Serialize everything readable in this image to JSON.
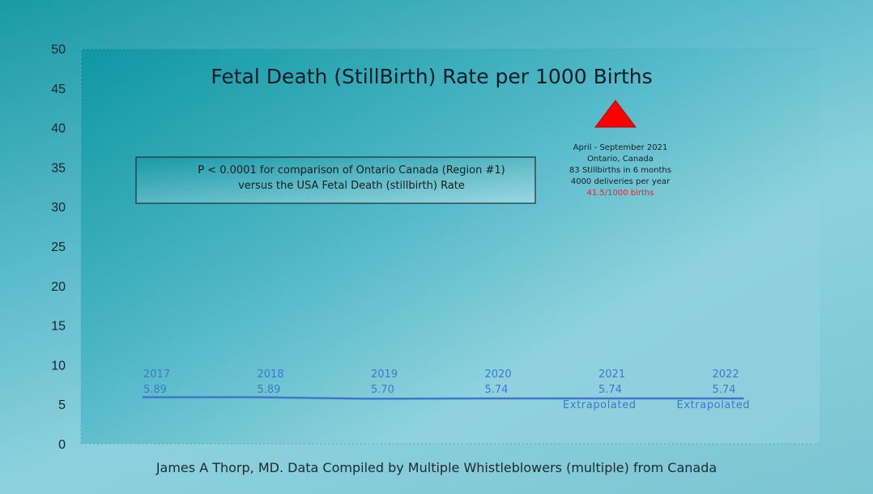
{
  "chart_data": {
    "type": "line",
    "title": "Fetal Death (StillBirth) Rate per 1000 Births",
    "xlabel": "",
    "ylabel": "",
    "ylim": [
      0,
      50
    ],
    "yticks": [
      "0",
      "5",
      "10",
      "15",
      "20",
      "25",
      "30",
      "35",
      "40",
      "45",
      "50"
    ],
    "categories": [
      "2017",
      "2018",
      "2019",
      "2020",
      "2021",
      "2022"
    ],
    "series": [
      {
        "values": [
          5.89,
          5.89,
          5.7,
          5.74,
          5.74,
          5.74
        ],
        "value_labels": [
          "5.89",
          "5.89",
          "5.70",
          "5.74",
          "5.74",
          "5.74"
        ],
        "notes": [
          "",
          "",
          "",
          "",
          "Extrapolated",
          "Extrapolated"
        ],
        "color": "#3f78c8"
      }
    ],
    "grid": false,
    "annotations": [
      {
        "kind": "box",
        "lines": [
          "P < 0.0001 for comparison of Ontario Canada (Region #1)",
          "versus the USA Fetal Death (stillbirth) Rate"
        ]
      },
      {
        "kind": "marker",
        "shape": "triangle",
        "color": "#ff0000",
        "x": "2021",
        "y": 41.5,
        "lines": [
          "April - September 2021",
          "Ontario, Canada",
          "83 Stillbirths in 6 months",
          "4000 deliveries per year"
        ],
        "highlight": "41.5/1000 births",
        "highlight_color": "#e8202a"
      }
    ]
  },
  "footer": "James A Thorp, MD. Data Compiled by Multiple Whistleblowers (multiple) from Canada"
}
